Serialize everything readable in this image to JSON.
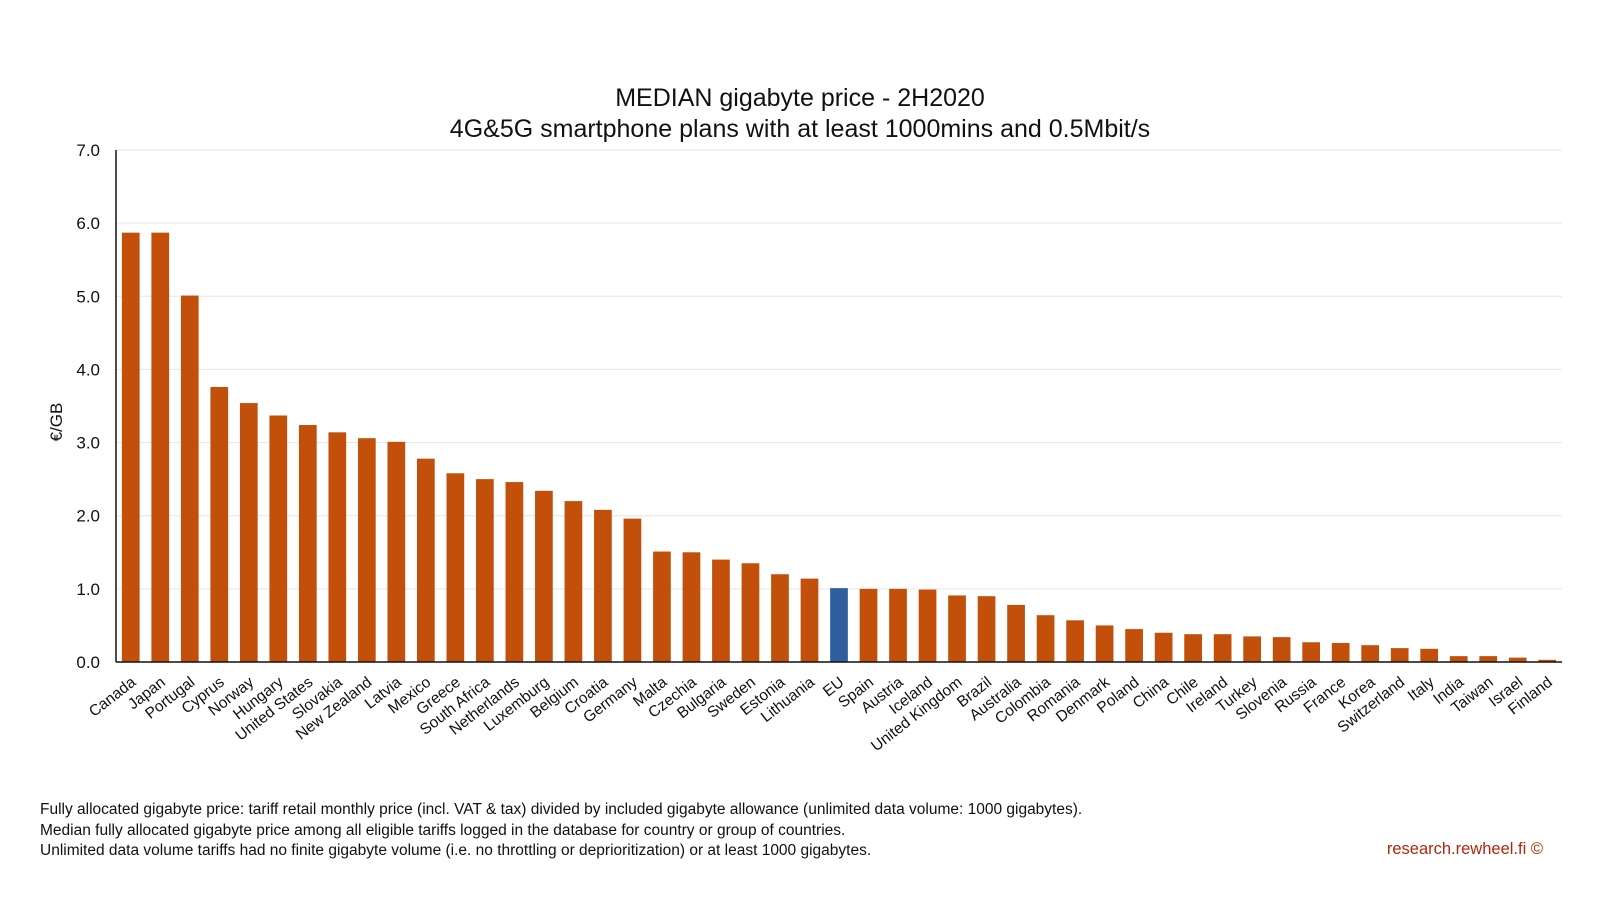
{
  "chart_data": {
    "type": "bar",
    "title": "MEDIAN gigabyte price - 2H2020",
    "subtitle": "4G&5G smartphone plans with at least 1000mins and 0.5Mbit/s",
    "xlabel": "",
    "ylabel": "€/GB",
    "ylim": [
      0,
      7
    ],
    "yticks": [
      "0.0",
      "1.0",
      "2.0",
      "3.0",
      "4.0",
      "5.0",
      "6.0",
      "7.0"
    ],
    "grid": true,
    "categories": [
      "Canada",
      "Japan",
      "Portugal",
      "Cyprus",
      "Norway",
      "Hungary",
      "United States",
      "Slovakia",
      "New Zealand",
      "Latvia",
      "Mexico",
      "Greece",
      "South Africa",
      "Netherlands",
      "Luxemburg",
      "Belgium",
      "Croatia",
      "Germany",
      "Malta",
      "Czechia",
      "Bulgaria",
      "Sweden",
      "Estonia",
      "Lithuania",
      "EU",
      "Spain",
      "Austria",
      "Iceland",
      "United Kingdom",
      "Brazil",
      "Australia",
      "Colombia",
      "Romania",
      "Denmark",
      "Poland",
      "China",
      "Chile",
      "Ireland",
      "Turkey",
      "Slovenia",
      "Russia",
      "France",
      "Korea",
      "Switzerland",
      "Italy",
      "India",
      "Taiwan",
      "Israel",
      "Finland"
    ],
    "values": [
      5.87,
      5.87,
      5.01,
      3.76,
      3.54,
      3.37,
      3.24,
      3.14,
      3.06,
      3.01,
      2.78,
      2.58,
      2.5,
      2.46,
      2.34,
      2.2,
      2.08,
      1.96,
      1.51,
      1.5,
      1.4,
      1.35,
      1.2,
      1.14,
      1.01,
      1.0,
      1.0,
      0.99,
      0.91,
      0.9,
      0.78,
      0.64,
      0.57,
      0.5,
      0.45,
      0.4,
      0.38,
      0.38,
      0.35,
      0.34,
      0.27,
      0.26,
      0.23,
      0.19,
      0.18,
      0.08,
      0.08,
      0.06,
      0.03
    ],
    "highlight_category": "EU",
    "colors": {
      "bar": "#c24f0a",
      "highlight": "#2f5f9e",
      "grid": "#e6e6e6",
      "axis": "#111111"
    }
  },
  "notes": [
    "Fully allocated gigabyte price: tariff retail monthly price (incl. VAT & tax) divided by included gigabyte allowance (unlimited data volume: 1000 gigabytes).",
    "Median fully allocated gigabyte price among all eligible tariffs logged in the database for country or group of countries.",
    "Unlimited data volume tariffs had no finite gigabyte volume (i.e. no throttling or deprioritization) or at least 1000 gigabytes."
  ],
  "credit": "research.rewheel.fi  ©"
}
